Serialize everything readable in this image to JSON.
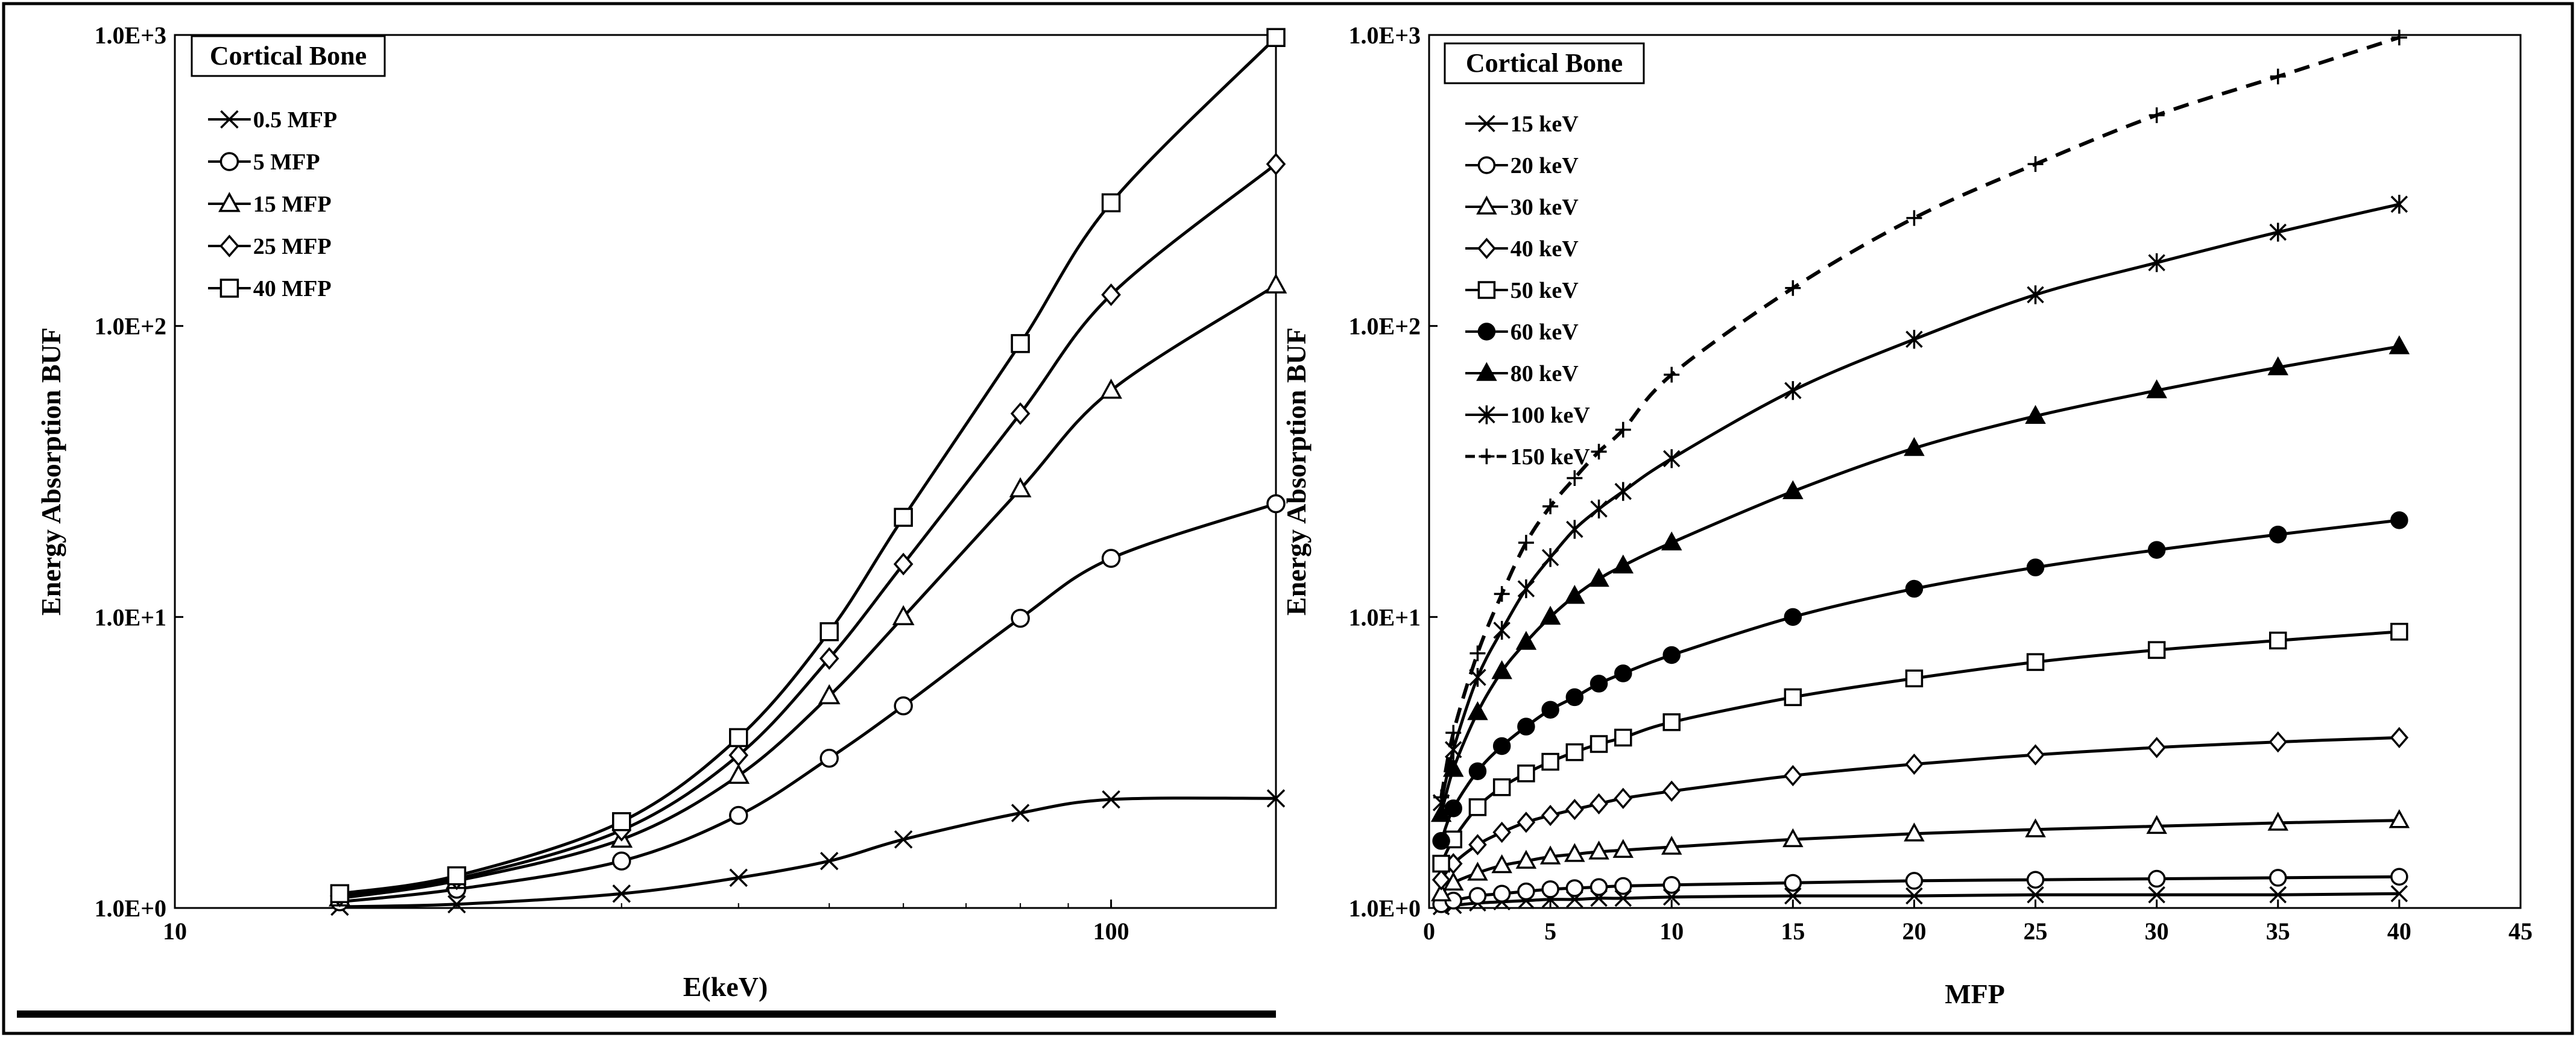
{
  "chart_data": [
    {
      "type": "line",
      "title": "Cortical Bone",
      "xlabel": "E(keV)",
      "ylabel": "Energy Absorption BUF",
      "xscale": "log",
      "yscale": "log",
      "xlim": [
        10,
        150
      ],
      "ylim": [
        1,
        1000
      ],
      "x_ticks": [
        {
          "value": 10,
          "label": "10"
        },
        {
          "value": 100,
          "label": "100"
        }
      ],
      "y_ticks": [
        {
          "value": 1,
          "label": "1.0E+0"
        },
        {
          "value": 10,
          "label": "1.0E+1"
        },
        {
          "value": 100,
          "label": "1.0E+2"
        },
        {
          "value": 1000,
          "label": "1.0E+3"
        }
      ],
      "legend_position": "top-left",
      "x": [
        15,
        20,
        30,
        40,
        50,
        60,
        80,
        100,
        150
      ],
      "series": [
        {
          "name": "0.5 MFP",
          "marker": "x",
          "values": [
            1.01,
            1.03,
            1.12,
            1.27,
            1.45,
            1.72,
            2.12,
            2.36,
            2.38
          ]
        },
        {
          "name": "5 MFP",
          "marker": "circle",
          "values": [
            1.05,
            1.16,
            1.45,
            2.08,
            3.27,
            4.95,
            9.9,
            15.9,
            24.5
          ]
        },
        {
          "name": "15 MFP",
          "marker": "triangle",
          "values": [
            1.08,
            1.24,
            1.72,
            2.85,
            5.35,
            10.0,
            27.5,
            60.0,
            138
          ]
        },
        {
          "name": "25 MFP",
          "marker": "diamond",
          "values": [
            1.1,
            1.26,
            1.85,
            3.35,
            7.2,
            15.2,
            50.0,
            128,
            360
          ]
        },
        {
          "name": "40 MFP",
          "marker": "square",
          "values": [
            1.12,
            1.29,
            1.98,
            3.85,
            8.9,
            22.0,
            87.0,
            265,
            980
          ]
        }
      ]
    },
    {
      "type": "line",
      "title": "Cortical Bone",
      "xlabel": "MFP",
      "ylabel": "Energy Absorption BUF",
      "xscale": "linear",
      "yscale": "log",
      "xlim": [
        0,
        45
      ],
      "ylim": [
        1,
        1000
      ],
      "x_ticks": [
        {
          "value": 0,
          "label": "0"
        },
        {
          "value": 5,
          "label": "5"
        },
        {
          "value": 10,
          "label": "10"
        },
        {
          "value": 15,
          "label": "15"
        },
        {
          "value": 20,
          "label": "20"
        },
        {
          "value": 25,
          "label": "25"
        },
        {
          "value": 30,
          "label": "30"
        },
        {
          "value": 35,
          "label": "35"
        },
        {
          "value": 40,
          "label": "40"
        },
        {
          "value": 45,
          "label": "45"
        }
      ],
      "y_ticks": [
        {
          "value": 1,
          "label": "1.0E+0"
        },
        {
          "value": 10,
          "label": "1.0E+1"
        },
        {
          "value": 100,
          "label": "1.0E+2"
        },
        {
          "value": 1000,
          "label": "1.0E+3"
        }
      ],
      "legend_position": "top-left",
      "x": [
        0.5,
        1,
        2,
        3,
        4,
        5,
        6,
        7,
        8,
        10,
        15,
        20,
        25,
        30,
        35,
        40
      ],
      "series": [
        {
          "name": "15 keV",
          "marker": "x",
          "values": [
            1.01,
            1.02,
            1.04,
            1.05,
            1.06,
            1.07,
            1.07,
            1.08,
            1.08,
            1.09,
            1.1,
            1.1,
            1.11,
            1.11,
            1.11,
            1.12
          ]
        },
        {
          "name": "20 keV",
          "marker": "circle",
          "values": [
            1.03,
            1.06,
            1.1,
            1.12,
            1.14,
            1.16,
            1.17,
            1.18,
            1.19,
            1.2,
            1.22,
            1.24,
            1.25,
            1.26,
            1.27,
            1.28
          ]
        },
        {
          "name": "30 keV",
          "marker": "triangle",
          "values": [
            1.12,
            1.22,
            1.32,
            1.4,
            1.45,
            1.5,
            1.53,
            1.56,
            1.58,
            1.62,
            1.72,
            1.8,
            1.86,
            1.91,
            1.96,
            2.0
          ]
        },
        {
          "name": "40 keV",
          "marker": "diamond",
          "values": [
            1.25,
            1.42,
            1.65,
            1.82,
            1.97,
            2.08,
            2.18,
            2.28,
            2.38,
            2.52,
            2.85,
            3.12,
            3.36,
            3.56,
            3.72,
            3.85
          ]
        },
        {
          "name": "50 keV",
          "marker": "square",
          "values": [
            1.42,
            1.72,
            2.22,
            2.6,
            2.9,
            3.18,
            3.43,
            3.66,
            3.85,
            4.35,
            5.3,
            6.15,
            7.0,
            7.7,
            8.3,
            8.9
          ]
        },
        {
          "name": "60 keV",
          "marker": "dot",
          "values": [
            1.7,
            2.2,
            2.95,
            3.6,
            4.2,
            4.8,
            5.3,
            5.9,
            6.4,
            7.4,
            10.0,
            12.5,
            14.8,
            17.0,
            19.2,
            21.5
          ]
        },
        {
          "name": "80 keV",
          "marker": "filled-triangle",
          "values": [
            2.1,
            3.0,
            4.7,
            6.5,
            8.2,
            10.0,
            11.8,
            13.5,
            15.0,
            18.0,
            27.0,
            38.0,
            49.0,
            60.0,
            72.0,
            85.0
          ]
        },
        {
          "name": "100 keV",
          "marker": "asterisk",
          "values": [
            2.3,
            3.5,
            6.2,
            9.0,
            12.5,
            16.0,
            20.0,
            23.5,
            27.0,
            35.0,
            60.0,
            90.0,
            128.0,
            165.0,
            210.0,
            262.0
          ]
        },
        {
          "name": "150 keV",
          "marker": "plus",
          "dashed": true,
          "values": [
            2.4,
            4.0,
            7.5,
            12.0,
            18.0,
            24.0,
            30.0,
            37.0,
            44.0,
            68.0,
            135.0,
            235.0,
            360.0,
            530.0,
            720.0,
            980.0
          ]
        }
      ]
    }
  ]
}
